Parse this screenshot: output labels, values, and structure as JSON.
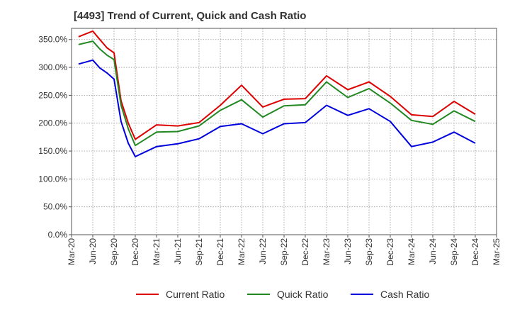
{
  "chart_data": {
    "type": "line",
    "title": "[4493]  Trend of Current, Quick and Cash Ratio",
    "xlabel": "",
    "ylabel": "",
    "ylim": [
      0,
      370
    ],
    "yticks": [
      0,
      50,
      100,
      150,
      200,
      250,
      300,
      350
    ],
    "ytick_labels": [
      "0.0%",
      "50.0%",
      "100.0%",
      "150.0%",
      "200.0%",
      "250.0%",
      "300.0%",
      "350.0%"
    ],
    "xtick_labels": [
      "Mar-20",
      "Jun-20",
      "Sep-20",
      "Dec-20",
      "Mar-21",
      "Jun-21",
      "Sep-21",
      "Dec-21",
      "Mar-22",
      "Jun-22",
      "Sep-22",
      "Dec-22",
      "Mar-23",
      "Jun-23",
      "Sep-23",
      "Dec-23",
      "Mar-24",
      "Jun-24",
      "Sep-24",
      "Dec-24",
      "Mar-25"
    ],
    "grid": true,
    "legend_position": "bottom",
    "series": [
      {
        "name": "Current Ratio",
        "color": "#dd0000",
        "x": [
          0.33,
          1,
          1.33,
          1.67,
          2,
          2.33,
          2.67,
          3,
          4,
          5,
          6,
          7,
          8,
          9,
          10,
          11,
          12,
          13,
          14,
          15,
          16,
          17,
          18,
          19
        ],
        "values": [
          355,
          365,
          350,
          335,
          326,
          240,
          200,
          171,
          197,
          195,
          201,
          232,
          268,
          229,
          243,
          244,
          285,
          260,
          274,
          248,
          215,
          212,
          239,
          216
        ]
      },
      {
        "name": "Quick Ratio",
        "color": "#228822",
        "x": [
          0.33,
          1,
          1.33,
          1.67,
          2,
          2.33,
          2.67,
          3,
          4,
          5,
          6,
          7,
          8,
          9,
          10,
          11,
          12,
          13,
          14,
          15,
          16,
          17,
          18,
          19
        ],
        "values": [
          341,
          347,
          333,
          322,
          314,
          232,
          190,
          160,
          184,
          185,
          195,
          223,
          242,
          211,
          231,
          233,
          274,
          246,
          262,
          236,
          205,
          198,
          222,
          203
        ]
      },
      {
        "name": "Cash Ratio",
        "color": "#0000dd",
        "x": [
          0.33,
          1,
          1.33,
          1.67,
          2,
          2.33,
          2.67,
          3,
          4,
          5,
          6,
          7,
          8,
          9,
          10,
          11,
          12,
          13,
          14,
          15,
          16,
          17,
          18,
          19
        ],
        "values": [
          306,
          313,
          299,
          290,
          279,
          203,
          164,
          140,
          158,
          163,
          172,
          194,
          199,
          181,
          199,
          201,
          232,
          214,
          226,
          203,
          158,
          166,
          184,
          164
        ]
      }
    ]
  }
}
